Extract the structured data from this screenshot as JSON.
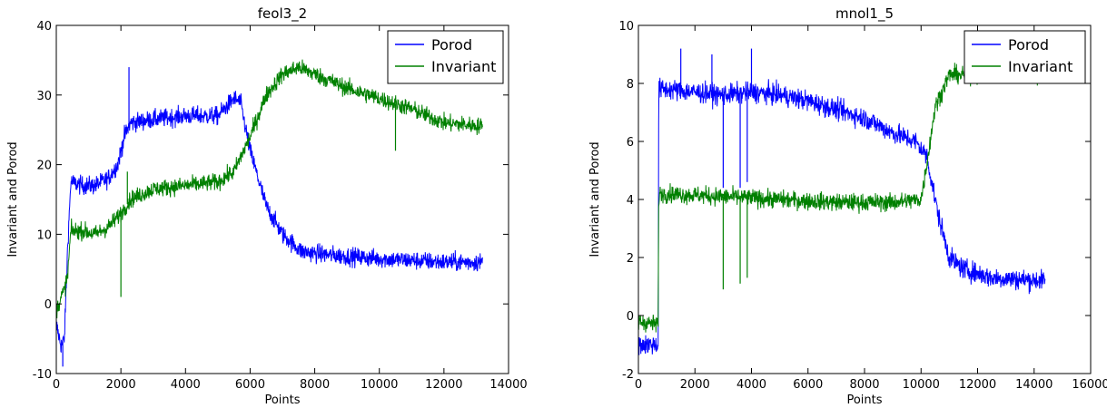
{
  "chart_data": [
    {
      "type": "line",
      "title": "feol3_2",
      "xlabel": "Points",
      "ylabel": "Invariant and Porod",
      "xlim": [
        0,
        14000
      ],
      "ylim": [
        -10,
        40
      ],
      "xticks": [
        "0",
        "2000",
        "4000",
        "6000",
        "8000",
        "10000",
        "12000",
        "14000"
      ],
      "yticks": [
        "-10",
        "0",
        "10",
        "20",
        "30",
        "40"
      ],
      "grid": false,
      "legend": "top-right",
      "series": [
        {
          "name": "Porod",
          "color": "#0000ff",
          "noise": 1.3,
          "points": [
            [
              0,
              -3
            ],
            [
              150,
              -6
            ],
            [
              250,
              -5
            ],
            [
              350,
              8
            ],
            [
              450,
              17.5
            ],
            [
              800,
              17
            ],
            [
              1200,
              17
            ],
            [
              1600,
              18
            ],
            [
              1900,
              20
            ],
            [
              2100,
              24
            ],
            [
              2300,
              26
            ],
            [
              3000,
              26.5
            ],
            [
              4000,
              27
            ],
            [
              5000,
              27
            ],
            [
              5500,
              29.5
            ],
            [
              5700,
              29
            ],
            [
              6000,
              22
            ],
            [
              6500,
              14
            ],
            [
              7000,
              10
            ],
            [
              7600,
              7.5
            ],
            [
              8500,
              7
            ],
            [
              10000,
              6.5
            ],
            [
              12000,
              6
            ],
            [
              13200,
              6
            ]
          ],
          "spikes": [
            [
              2250,
              34
            ],
            [
              2000,
              21
            ],
            [
              200,
              -9
            ]
          ]
        },
        {
          "name": "Invariant",
          "color": "#008000",
          "noise": 1.2,
          "points": [
            [
              0,
              -1
            ],
            [
              150,
              1
            ],
            [
              250,
              2
            ],
            [
              350,
              4
            ],
            [
              450,
              10.5
            ],
            [
              800,
              10.5
            ],
            [
              1200,
              10
            ],
            [
              1600,
              11
            ],
            [
              2000,
              13
            ],
            [
              2300,
              15
            ],
            [
              3000,
              16.5
            ],
            [
              4000,
              17
            ],
            [
              5000,
              17.5
            ],
            [
              5500,
              19
            ],
            [
              6000,
              24
            ],
            [
              6500,
              30
            ],
            [
              7000,
              33
            ],
            [
              7500,
              34
            ],
            [
              8000,
              33
            ],
            [
              9000,
              31
            ],
            [
              10000,
              29.5
            ],
            [
              11000,
              28
            ],
            [
              12000,
              26
            ],
            [
              13200,
              25.5
            ]
          ],
          "spikes": [
            [
              2000,
              1
            ],
            [
              2200,
              19
            ],
            [
              10500,
              22
            ]
          ]
        }
      ]
    },
    {
      "type": "line",
      "title": "mnol1_5",
      "xlabel": "Points",
      "ylabel": "Invariant and Porod",
      "xlim": [
        0,
        16000
      ],
      "ylim": [
        -2,
        10
      ],
      "xticks": [
        "0",
        "2000",
        "4000",
        "6000",
        "8000",
        "10000",
        "12000",
        "14000",
        "16000"
      ],
      "yticks": [
        "-2",
        "0",
        "2",
        "4",
        "6",
        "8",
        "10"
      ],
      "grid": false,
      "legend": "top-right",
      "series": [
        {
          "name": "Porod",
          "color": "#0000ff",
          "noise": 0.35,
          "points": [
            [
              0,
              -1
            ],
            [
              600,
              -1
            ],
            [
              700,
              -1
            ],
            [
              720,
              7.8
            ],
            [
              1000,
              7.8
            ],
            [
              3000,
              7.6
            ],
            [
              4000,
              7.7
            ],
            [
              5000,
              7.6
            ],
            [
              6000,
              7.4
            ],
            [
              7000,
              7.1
            ],
            [
              8000,
              6.8
            ],
            [
              9000,
              6.3
            ],
            [
              9800,
              6
            ],
            [
              10200,
              5.5
            ],
            [
              10600,
              3.5
            ],
            [
              11000,
              2
            ],
            [
              11500,
              1.6
            ],
            [
              12500,
              1.3
            ],
            [
              14400,
              1.2
            ]
          ],
          "spikes": [
            [
              3000,
              4.4
            ],
            [
              3600,
              4.4
            ],
            [
              3850,
              4.6
            ],
            [
              1500,
              9.2
            ],
            [
              4000,
              9.2
            ],
            [
              2600,
              9
            ]
          ]
        },
        {
          "name": "Invariant",
          "color": "#008000",
          "noise": 0.3,
          "points": [
            [
              0,
              -0.2
            ],
            [
              600,
              -0.3
            ],
            [
              700,
              -0.3
            ],
            [
              720,
              4.2
            ],
            [
              1000,
              4.2
            ],
            [
              3000,
              4.1
            ],
            [
              5000,
              4.0
            ],
            [
              7000,
              3.9
            ],
            [
              9000,
              3.9
            ],
            [
              10000,
              4.0
            ],
            [
              10200,
              5.2
            ],
            [
              10500,
              7.2
            ],
            [
              11000,
              8.3
            ],
            [
              12000,
              8.3
            ],
            [
              13000,
              8.3
            ],
            [
              14400,
              8.3
            ]
          ],
          "spikes": [
            [
              3000,
              0.9
            ],
            [
              3600,
              1.1
            ],
            [
              3850,
              1.3
            ]
          ]
        }
      ]
    }
  ]
}
